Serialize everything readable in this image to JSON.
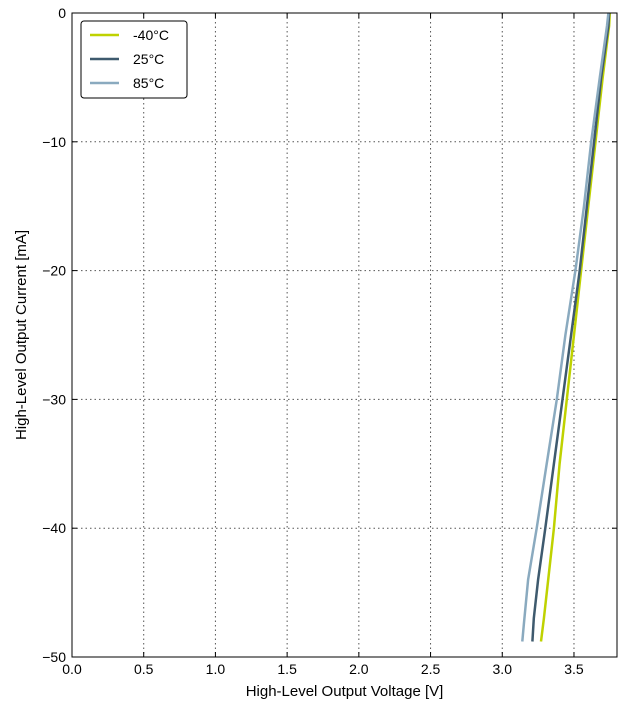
{
  "chart_data": {
    "type": "line",
    "title": "",
    "xlabel": "High-Level Output Voltage [V]",
    "ylabel": "High-Level Output Current [mA]",
    "xlim": [
      0.0,
      3.8
    ],
    "ylim": [
      -50,
      0
    ],
    "xticks": [
      "0.0",
      "0.5",
      "1.0",
      "1.5",
      "2.0",
      "2.5",
      "3.0",
      "3.5"
    ],
    "yticks": [
      "0",
      "−10",
      "−20",
      "−30",
      "−40",
      "−50"
    ],
    "xtick_values": [
      0.0,
      0.5,
      1.0,
      1.5,
      2.0,
      2.5,
      3.0,
      3.5
    ],
    "ytick_values": [
      0,
      -10,
      -20,
      -30,
      -40,
      -50
    ],
    "grid": true,
    "legend_position": "top-left",
    "series": [
      {
        "name": "-40°C",
        "color": "#bfd200",
        "points": [
          [
            3.27,
            -48.8
          ],
          [
            3.29,
            -47.0
          ],
          [
            3.32,
            -44.0
          ],
          [
            3.36,
            -40.0
          ],
          [
            3.4,
            -35.0
          ],
          [
            3.45,
            -30.0
          ],
          [
            3.5,
            -25.0
          ],
          [
            3.55,
            -20.0
          ],
          [
            3.6,
            -15.0
          ],
          [
            3.65,
            -10.0
          ],
          [
            3.7,
            -5.0
          ],
          [
            3.745,
            -1.0
          ],
          [
            3.75,
            0.0
          ]
        ]
      },
      {
        "name": "25°C",
        "color": "#3e5a6e",
        "points": [
          [
            3.21,
            -48.8
          ],
          [
            3.22,
            -47.0
          ],
          [
            3.25,
            -44.0
          ],
          [
            3.3,
            -40.0
          ],
          [
            3.36,
            -35.0
          ],
          [
            3.42,
            -30.0
          ],
          [
            3.45,
            -27.5
          ],
          [
            3.48,
            -25.0
          ],
          [
            3.54,
            -20.0
          ],
          [
            3.59,
            -15.0
          ],
          [
            3.64,
            -10.0
          ],
          [
            3.69,
            -5.0
          ],
          [
            3.74,
            -1.0
          ],
          [
            3.745,
            0.0
          ]
        ]
      },
      {
        "name": "85°C",
        "color": "#8aaabf",
        "points": [
          [
            3.14,
            -48.8
          ],
          [
            3.15,
            -47.5
          ],
          [
            3.18,
            -44.0
          ],
          [
            3.24,
            -40.0
          ],
          [
            3.31,
            -35.0
          ],
          [
            3.38,
            -30.0
          ],
          [
            3.44,
            -25.0
          ],
          [
            3.51,
            -20.0
          ],
          [
            3.57,
            -15.0
          ],
          [
            3.62,
            -10.0
          ],
          [
            3.68,
            -5.0
          ],
          [
            3.73,
            -1.0
          ],
          [
            3.74,
            0.0
          ]
        ]
      }
    ]
  }
}
